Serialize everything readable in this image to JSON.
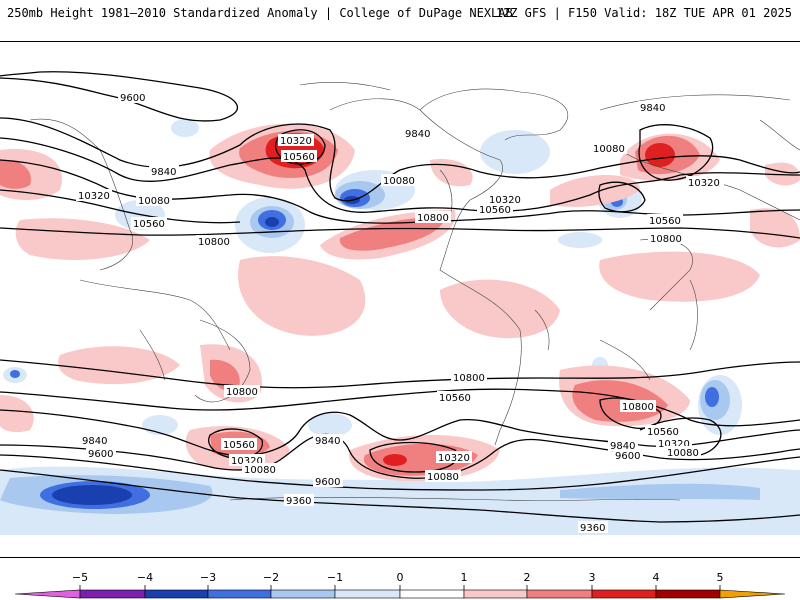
{
  "header": {
    "title": "250mb Height 1981–2010 Standardized Anomaly | College of DuPage NEXLAB",
    "run_info": "12Z GFS | F150 Valid: 18Z TUE APR 01 2025"
  },
  "colorbar": {
    "ticks": [
      "−5",
      "−4",
      "−3",
      "−2",
      "−1",
      "0",
      "1",
      "2",
      "3",
      "4",
      "5"
    ],
    "colors": {
      "below_-5": "#e060e0",
      "-5_-4": "#7a1fb0",
      "-4_-3": "#1a40b0",
      "-3_-2": "#3f6fe0",
      "-2_-1": "#a8c8f0",
      "-1_0": "#d8e8f8",
      "0_1": "#ffffff",
      "1_2": "#f9c8c8",
      "2_3": "#f08080",
      "3_4": "#e02020",
      "4_5": "#a00000",
      "above_5": "#f0a000"
    }
  },
  "contour_labels": [
    "9600",
    "9840",
    "10320",
    "10080",
    "10560",
    "10800",
    "10320",
    "10560",
    "9840",
    "10080",
    "10080",
    "10320",
    "10560",
    "10800",
    "9840",
    "10080",
    "10320",
    "10560",
    "10800",
    "10800",
    "10800",
    "10560",
    "10800",
    "10560",
    "10320",
    "10080",
    "9840",
    "9600",
    "10560",
    "10320",
    "10080",
    "9840",
    "9600",
    "10320",
    "10080",
    "9600",
    "9360",
    "9360",
    "10800"
  ]
}
